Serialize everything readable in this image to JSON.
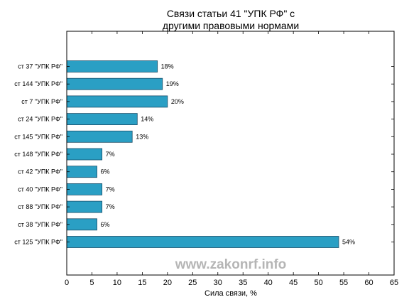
{
  "chart_data": {
    "type": "bar",
    "orientation": "horizontal",
    "title_lines": [
      "Связи статьи 41 \"УПК РФ\" с",
      "другими правовыми нормами"
    ],
    "xlabel": "Сила связи, %",
    "ylabel": "",
    "xlim": [
      0,
      65
    ],
    "xticks": [
      0,
      5,
      10,
      15,
      20,
      25,
      30,
      35,
      40,
      45,
      50,
      55,
      60,
      65
    ],
    "grid": false,
    "categories": [
      "ст 37 \"УПК РФ\"",
      "ст 144 \"УПК РФ\"",
      "ст 7 \"УПК РФ\"",
      "ст 24 \"УПК РФ\"",
      "ст 145 \"УПК РФ\"",
      "ст 148 \"УПК РФ\"",
      "ст 42 \"УПК РФ\"",
      "ст 40 \"УПК РФ\"",
      "ст 88 \"УПК РФ\"",
      "ст 38 \"УПК РФ\"",
      "ст 125 \"УПК РФ\""
    ],
    "values": [
      18,
      19,
      20,
      14,
      13,
      7,
      6,
      7,
      7,
      6,
      54
    ],
    "value_labels": [
      "18%",
      "19%",
      "20%",
      "14%",
      "13%",
      "7%",
      "6%",
      "7%",
      "7%",
      "6%",
      "54%"
    ],
    "bar_color": "#2a9fc4",
    "bar_edge_color": "#1b4f6a"
  },
  "watermark": "www.zakonrf.info"
}
